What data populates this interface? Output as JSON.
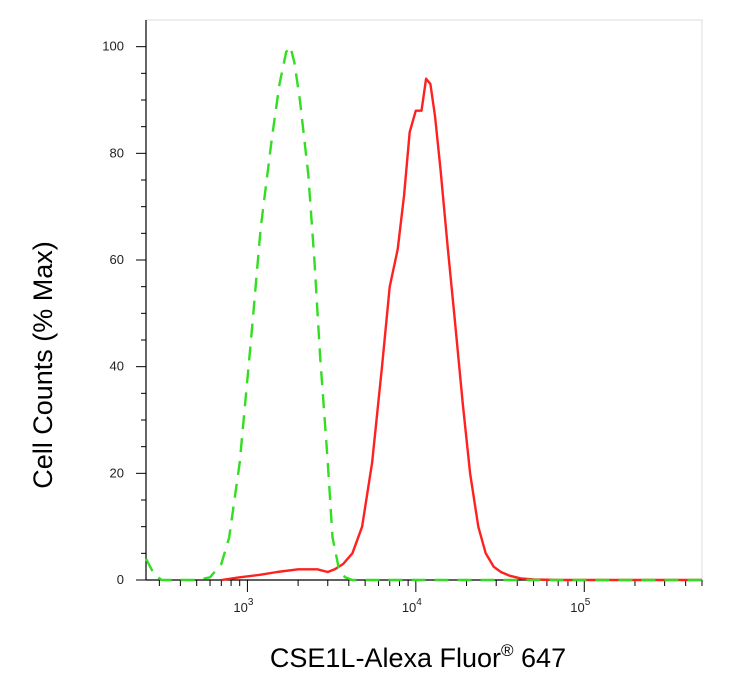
{
  "chart_data": {
    "type": "line",
    "title": "",
    "xlabel": "CSE1L-Alexa Fluor",
    "xlabel_superscript": "®",
    "xlabel_suffix": " 647",
    "ylabel": "Cell Counts (% Max)",
    "xscale": "log",
    "xlim": [
      250,
      500000
    ],
    "ylim": [
      0,
      105
    ],
    "yticks": [
      0,
      20,
      40,
      60,
      80,
      100
    ],
    "ytick_labels": [
      "0",
      "20",
      "40",
      "60",
      "80",
      "100"
    ],
    "xtick_labels": [
      {
        "value": 1000,
        "base": "10",
        "exp": "3"
      },
      {
        "value": 10000,
        "base": "10",
        "exp": "4"
      },
      {
        "value": 100000,
        "base": "10",
        "exp": "5"
      }
    ],
    "grid": false,
    "legend": "none",
    "series": [
      {
        "color": "#ff2020",
        "style": "solid",
        "x": [
          700,
          900,
          1200,
          1500,
          2000,
          2600,
          3000,
          3300,
          3700,
          4200,
          4800,
          5500,
          6300,
          7000,
          7800,
          8500,
          9200,
          10000,
          10800,
          11500,
          12200,
          13000,
          14000,
          15500,
          17000,
          19000,
          21000,
          23500,
          26000,
          29000,
          32000,
          36000,
          42000,
          50000,
          70000,
          150000,
          500000
        ],
        "y": [
          0,
          0.5,
          1,
          1.5,
          2,
          2,
          1.5,
          2,
          3,
          5,
          10,
          22,
          40,
          55,
          62,
          72,
          84,
          88,
          88,
          94,
          93,
          87,
          77,
          62,
          49,
          33,
          20,
          10,
          5,
          2.5,
          1.5,
          0.8,
          0.3,
          0.1,
          0,
          0,
          0
        ]
      },
      {
        "color": "#33dd22",
        "style": "dashed",
        "x": [
          250,
          280,
          310,
          400,
          500,
          600,
          700,
          780,
          900,
          1050,
          1200,
          1400,
          1550,
          1700,
          1800,
          1900,
          2050,
          2300,
          2500,
          2700,
          3000,
          3200,
          3500,
          3800,
          4200,
          5000,
          8000,
          20000,
          100000,
          500000
        ],
        "y": [
          4,
          1,
          0,
          0,
          0,
          0.5,
          3,
          8,
          22,
          45,
          66,
          83,
          93,
          99,
          100,
          97,
          90,
          76,
          60,
          42,
          22,
          8,
          2,
          0.5,
          0,
          0,
          0,
          0,
          0,
          0
        ]
      }
    ]
  }
}
